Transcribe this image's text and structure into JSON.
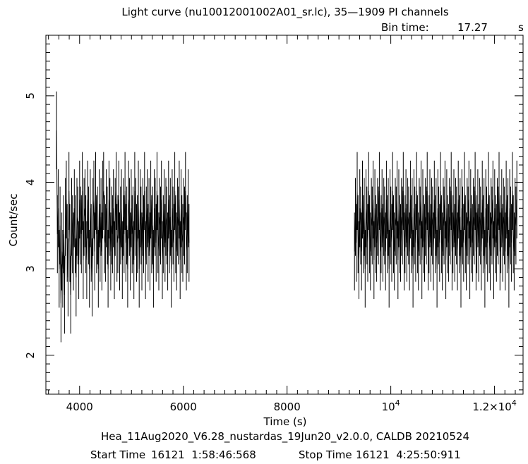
{
  "header": {
    "title": "Light curve (nu10012001002A01_sr.lc), 35—1909 PI channels",
    "bin_label": "Bin time:",
    "bin_value": "17.27",
    "bin_unit": "s"
  },
  "footer": {
    "software_line": "Hea_11Aug2020_V6.28_nustardas_19Jun20_v2.0.0, CALDB 20210524",
    "start_label": "Start Time",
    "start_value": "16121  1:58:46:568",
    "stop_label": "Stop Time",
    "stop_value": "16121  4:25:50:911"
  },
  "chart_data": {
    "type": "line",
    "xlabel": "Time (s)",
    "ylabel": "Count/sec",
    "xlim": [
      3350,
      12550
    ],
    "ylim": [
      1.55,
      5.7
    ],
    "x_ticks": [
      {
        "value": 4000,
        "label": "4000"
      },
      {
        "value": 6000,
        "label": "6000"
      },
      {
        "value": 8000,
        "label": "8000"
      },
      {
        "value": 10000,
        "label": "10",
        "exp": "4"
      },
      {
        "value": 12000,
        "label": "1.2×10",
        "exp": "4"
      }
    ],
    "y_ticks": [
      {
        "value": 2,
        "label": "2"
      },
      {
        "value": 3,
        "label": "3"
      },
      {
        "value": 4,
        "label": "4"
      },
      {
        "value": 5,
        "label": "5"
      }
    ],
    "bin_time": 17.27,
    "series": [
      {
        "segment": 1,
        "x_start": 3555,
        "x_end": 6110,
        "y": [
          4.6,
          3.4,
          3.7,
          3.0,
          3.5,
          2.6,
          3.2,
          3.0,
          3.4,
          2.7,
          3.6,
          3.8,
          3.3,
          2.9,
          3.9,
          3.3,
          2.7,
          3.6,
          3.4,
          3.2,
          3.7,
          3.4,
          2.9,
          3.6,
          3.5,
          3.1,
          3.8,
          3.5,
          3.4,
          3.9,
          3.1,
          3.6,
          3.7,
          3.4,
          3.1,
          3.8,
          3.5,
          3.0,
          3.7,
          3.3,
          2.9,
          3.6,
          3.8,
          3.2,
          3.9,
          3.4,
          3.5,
          3.0,
          3.7,
          3.3,
          3.6,
          3.2,
          3.8,
          3.9,
          3.4,
          3.3,
          3.7,
          3.5,
          3.0,
          3.8,
          3.6,
          3.2,
          3.5,
          3.4,
          3.7,
          3.1,
          3.6,
          3.9,
          3.3,
          3.4,
          3.8,
          3.2,
          3.5,
          3.7,
          3.1,
          3.6,
          3.4,
          3.9,
          3.3,
          3.5,
          3.0,
          3.8,
          3.6,
          3.2,
          3.7,
          3.4,
          3.5,
          3.1,
          3.9,
          3.6,
          3.3,
          3.4,
          3.8,
          3.0,
          3.7,
          3.5,
          3.2,
          3.6,
          3.4,
          3.9,
          3.1,
          3.5,
          3.7,
          3.3,
          3.6,
          3.2,
          3.8,
          3.4,
          3.5,
          3.0,
          3.7,
          3.6,
          3.3,
          3.9,
          3.4,
          3.2,
          3.6,
          3.5,
          3.8,
          3.1,
          3.4,
          3.7,
          3.3,
          3.6,
          3.5,
          3.2,
          3.8,
          3.4,
          3.6,
          3.0,
          3.7,
          3.5,
          3.3,
          3.9,
          3.4,
          3.2,
          3.6,
          3.5,
          3.8,
          3.1,
          3.7,
          3.4,
          3.3,
          3.6,
          3.5,
          3.9,
          3.2,
          3.4,
          3.7,
          3.3
        ]
      },
      {
        "segment": 2,
        "x_start": 9300,
        "x_end": 12430,
        "y": [
          3.2,
          3.6,
          3.3,
          3.9,
          3.4,
          3.1,
          3.7,
          3.5,
          3.2,
          3.8,
          3.4,
          3.6,
          3.0,
          3.7,
          3.5,
          3.3,
          3.9,
          3.4,
          3.2,
          3.6,
          3.5,
          3.8,
          3.1,
          3.7,
          3.4,
          3.3,
          3.6,
          3.5,
          3.9,
          3.2,
          3.4,
          3.7,
          3.3,
          3.6,
          3.5,
          3.2,
          3.8,
          3.4,
          3.6,
          3.0,
          3.7,
          3.5,
          3.3,
          3.9,
          3.4,
          3.2,
          3.6,
          3.5,
          3.8,
          3.1,
          3.7,
          3.4,
          3.3,
          3.6,
          3.5,
          3.9,
          3.2,
          3.4,
          3.7,
          3.3,
          3.6,
          3.5,
          3.2,
          3.8,
          3.4,
          3.6,
          3.0,
          3.7,
          3.5,
          3.3,
          3.9,
          3.4,
          3.2,
          3.6,
          3.5,
          3.8,
          3.1,
          3.7,
          3.4,
          3.3,
          3.6,
          3.5,
          3.9,
          3.2,
          3.4,
          3.7,
          3.3,
          3.6,
          3.5,
          3.2,
          3.8,
          3.4,
          3.6,
          3.0,
          3.7,
          3.5,
          3.3,
          3.9,
          3.4,
          3.2,
          3.6,
          3.5,
          3.8,
          3.1,
          3.7,
          3.4,
          3.3,
          3.6,
          3.5,
          3.9,
          3.2,
          3.4,
          3.7,
          3.3,
          3.6,
          3.5,
          3.2,
          3.8,
          3.4,
          3.6,
          3.0,
          3.7,
          3.5,
          3.3,
          3.9,
          3.4,
          3.2,
          3.6,
          3.5,
          3.8,
          3.1,
          3.7,
          3.4,
          3.3,
          3.6,
          3.5,
          3.9,
          3.2,
          3.4,
          3.7,
          3.3,
          3.6,
          3.5,
          3.2,
          3.8,
          3.4,
          3.6,
          3.0,
          3.7,
          3.5,
          3.3,
          3.9,
          3.4,
          3.2,
          3.6,
          3.5,
          3.8,
          3.1,
          3.7,
          3.4,
          3.3,
          3.6,
          3.5,
          3.9,
          3.2,
          3.4,
          3.7,
          3.3,
          3.6,
          3.5,
          3.2,
          3.8,
          3.4,
          3.6,
          3.0,
          3.7,
          3.5,
          3.3,
          3.9,
          3.4,
          3.2,
          3.6,
          3.5,
          3.8
        ]
      }
    ],
    "error_bar_halfwidth": 0.45
  }
}
